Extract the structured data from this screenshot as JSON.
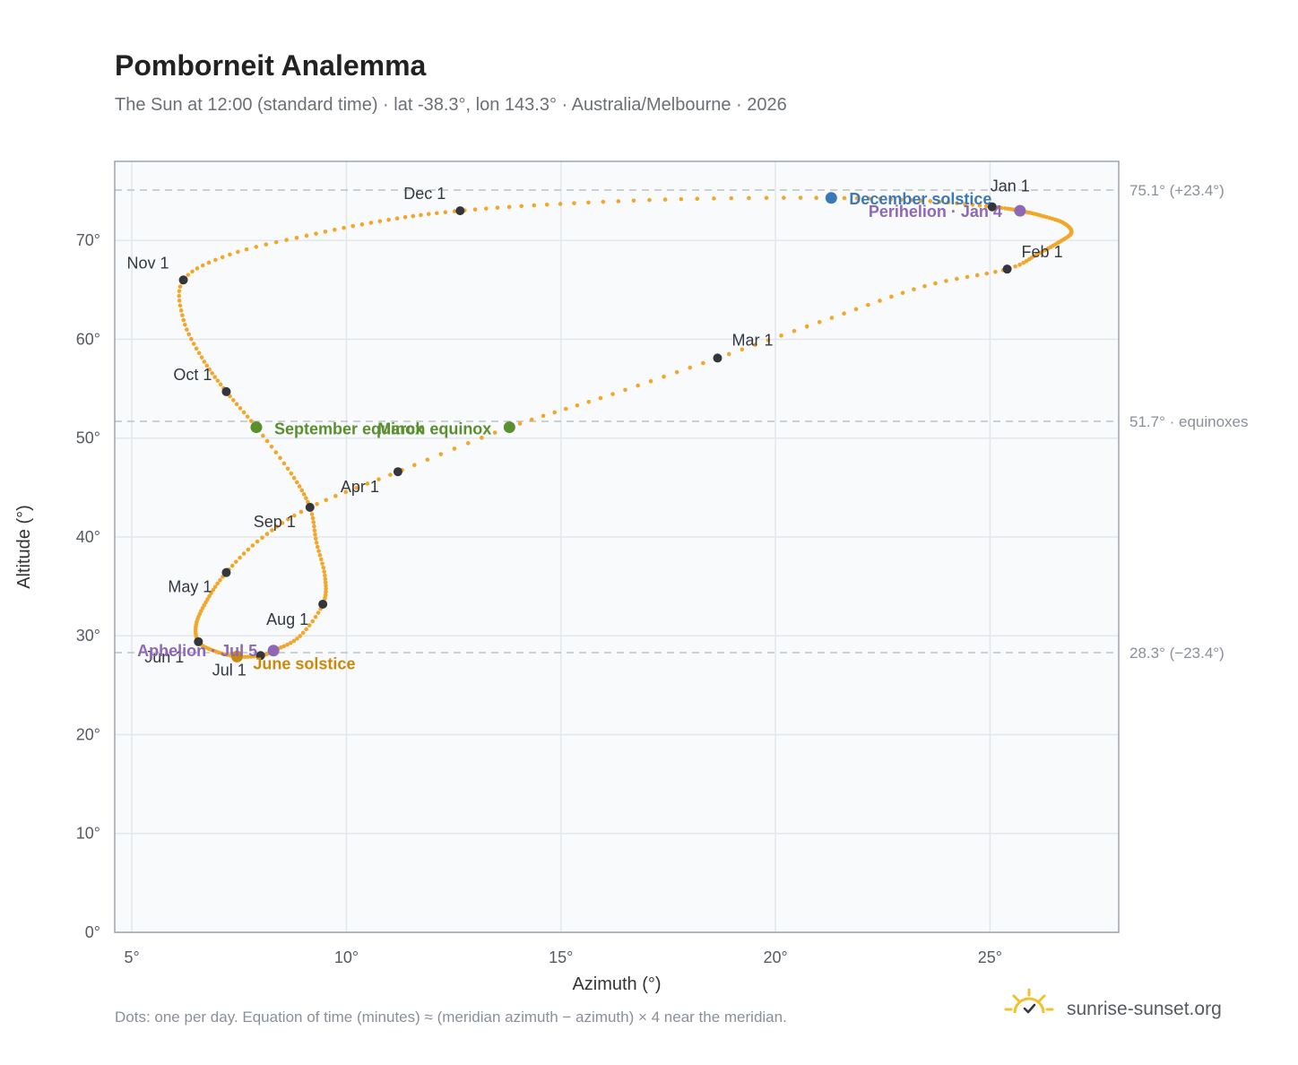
{
  "title": "Pomborneit Analemma",
  "subtitle": "The Sun at 12:00 (standard time) · lat -38.3°, lon 143.3° · Australia/Melbourne · 2026",
  "footnote": "Dots: one per day. Equation of time (minutes) ≈ (meridian azimuth − azimuth) × 4 near the meridian.",
  "brand": {
    "name": "sunrise-sunset.org",
    "icon": "sun-check-logo-icon",
    "color": "#f2c12e"
  },
  "colors": {
    "curve": "#f2a72a",
    "month_dot": "#33373d",
    "equinox": "#5a8f2e",
    "december_solstice": "#3b78b8",
    "june_solstice": "#c98a0c",
    "aphelion_perihelion": "#8e68b4",
    "reference_line": "#b9c1c9",
    "plot_background": "#f8fafc",
    "plot_border": "#9aa4b0",
    "grid": "#e2e7ec"
  },
  "chart_data": {
    "type": "scatter",
    "xlabel": "Azimuth (°)",
    "ylabel": "Altitude (°)",
    "xlim": [
      4.6,
      28
    ],
    "ylim": [
      0,
      78
    ],
    "x_ticks": [
      5,
      10,
      15,
      20,
      25
    ],
    "x_tick_labels": [
      "5°",
      "10°",
      "15°",
      "20°",
      "25°"
    ],
    "y_ticks": [
      0,
      10,
      20,
      30,
      40,
      50,
      60,
      70
    ],
    "y_tick_labels": [
      "0°",
      "10°",
      "20°",
      "30°",
      "40°",
      "50°",
      "60°",
      "70°"
    ],
    "grid": true,
    "reference_lines": [
      {
        "y": 75.1,
        "label": "75.1° (+23.4°)"
      },
      {
        "y": 51.7,
        "label": "51.7° · equinoxes"
      },
      {
        "y": 28.3,
        "label": "28.3° (−23.4°)"
      }
    ],
    "daily_path": [
      {
        "az": 25.05,
        "alt": 73.4
      },
      {
        "az": 25.7,
        "alt": 73.0
      },
      {
        "az": 26.2,
        "alt": 72.5
      },
      {
        "az": 26.7,
        "alt": 71.8
      },
      {
        "az": 26.9,
        "alt": 70.8
      },
      {
        "az": 26.6,
        "alt": 69.8
      },
      {
        "az": 26.1,
        "alt": 68.6
      },
      {
        "az": 25.4,
        "alt": 67.1
      },
      {
        "az": 23.5,
        "alt": 65.4
      },
      {
        "az": 21.2,
        "alt": 62.0
      },
      {
        "az": 18.65,
        "alt": 58.1
      },
      {
        "az": 16.1,
        "alt": 54.3
      },
      {
        "az": 13.8,
        "alt": 51.1
      },
      {
        "az": 11.2,
        "alt": 46.6
      },
      {
        "az": 9.15,
        "alt": 43.0
      },
      {
        "az": 8.0,
        "alt": 39.8
      },
      {
        "az": 7.2,
        "alt": 36.4
      },
      {
        "az": 6.75,
        "alt": 33.6
      },
      {
        "az": 6.5,
        "alt": 31.2
      },
      {
        "az": 6.55,
        "alt": 29.4
      },
      {
        "az": 6.9,
        "alt": 28.5
      },
      {
        "az": 7.45,
        "alt": 27.9
      },
      {
        "az": 8.0,
        "alt": 28.0
      },
      {
        "az": 8.3,
        "alt": 28.5
      },
      {
        "az": 8.9,
        "alt": 29.9
      },
      {
        "az": 9.45,
        "alt": 33.2
      },
      {
        "az": 9.5,
        "alt": 36.0
      },
      {
        "az": 9.3,
        "alt": 39.5
      },
      {
        "az": 9.15,
        "alt": 43.0
      },
      {
        "az": 8.7,
        "alt": 46.5
      },
      {
        "az": 7.9,
        "alt": 51.1
      },
      {
        "az": 7.2,
        "alt": 54.7
      },
      {
        "az": 6.65,
        "alt": 58.0
      },
      {
        "az": 6.2,
        "alt": 62.0
      },
      {
        "az": 6.2,
        "alt": 66.0
      },
      {
        "az": 7.3,
        "alt": 68.6
      },
      {
        "az": 9.2,
        "alt": 70.6
      },
      {
        "az": 11.0,
        "alt": 72.1
      },
      {
        "az": 12.65,
        "alt": 73.0
      },
      {
        "az": 15.0,
        "alt": 73.7
      },
      {
        "az": 18.0,
        "alt": 74.2
      },
      {
        "az": 21.3,
        "alt": 74.3
      },
      {
        "az": 23.5,
        "alt": 74.0
      },
      {
        "az": 25.05,
        "alt": 73.4
      }
    ],
    "month_markers": [
      {
        "label": "Jan 1",
        "az": 25.05,
        "alt": 73.4
      },
      {
        "label": "Feb 1",
        "az": 25.4,
        "alt": 67.1
      },
      {
        "label": "Mar 1",
        "az": 18.65,
        "alt": 58.1
      },
      {
        "label": "Apr 1",
        "az": 11.2,
        "alt": 46.6
      },
      {
        "label": "May 1",
        "az": 7.2,
        "alt": 36.4
      },
      {
        "label": "Jun 1",
        "az": 6.55,
        "alt": 29.4
      },
      {
        "label": "Jul 1",
        "az": 8.0,
        "alt": 28.0
      },
      {
        "label": "Aug 1",
        "az": 9.45,
        "alt": 33.2
      },
      {
        "label": "Sep 1",
        "az": 9.15,
        "alt": 43.0
      },
      {
        "label": "Oct 1",
        "az": 7.2,
        "alt": 54.7
      },
      {
        "label": "Nov 1",
        "az": 6.2,
        "alt": 66.0
      },
      {
        "label": "Dec 1",
        "az": 12.65,
        "alt": 73.0
      }
    ],
    "events": [
      {
        "label": "December solstice",
        "az": 21.3,
        "alt": 74.3,
        "kind": "december_solstice"
      },
      {
        "label": "Perihelion · Jan 4",
        "az": 25.7,
        "alt": 73.0,
        "kind": "aphelion_perihelion"
      },
      {
        "label": "March equinox",
        "az": 13.8,
        "alt": 51.1,
        "kind": "equinox"
      },
      {
        "label": "September equinox",
        "az": 7.9,
        "alt": 51.1,
        "kind": "equinox"
      },
      {
        "label": "June solstice",
        "az": 7.45,
        "alt": 27.9,
        "kind": "june_solstice"
      },
      {
        "label": "Aphelion · Jul 5",
        "az": 8.3,
        "alt": 28.5,
        "kind": "aphelion_perihelion"
      }
    ]
  }
}
